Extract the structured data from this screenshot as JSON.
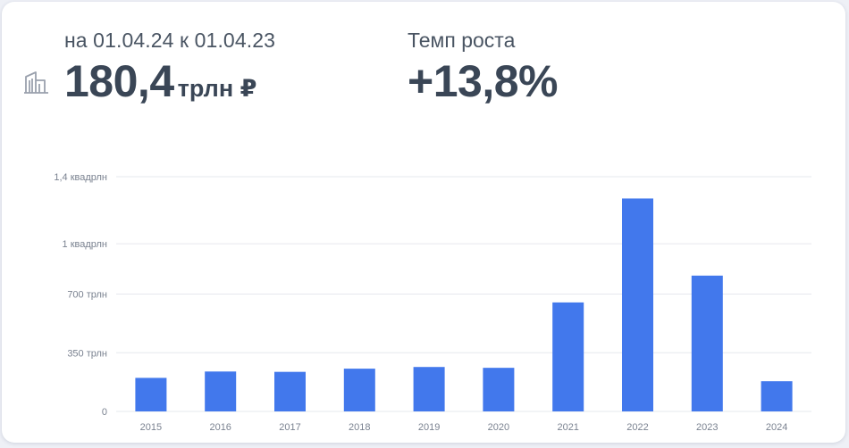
{
  "header": {
    "period": "на 01.04.24 к 01.04.23",
    "total_value": "180,4",
    "total_unit": "трлн ₽",
    "growth_label": "Темп роста",
    "growth_value": "+13,8%",
    "icon": "building-icon"
  },
  "colors": {
    "bar": "#4278ec",
    "grid": "#e6e8ee",
    "text": "#3a4656"
  },
  "chart_data": {
    "type": "bar",
    "categories": [
      "2015",
      "2016",
      "2017",
      "2018",
      "2019",
      "2020",
      "2021",
      "2022",
      "2023",
      "2024"
    ],
    "values": [
      200,
      238,
      236,
      255,
      265,
      260,
      650,
      1270,
      810,
      180
    ],
    "unit": "трлн ₽",
    "ylim": [
      0,
      1400
    ],
    "yticks": [
      0,
      350,
      700,
      1000,
      1400
    ],
    "ytick_labels": [
      "0",
      "350 трлн",
      "700 трлн",
      "1 квадрлн",
      "1,4 квадрлн"
    ],
    "grid": true,
    "legend": "none"
  }
}
